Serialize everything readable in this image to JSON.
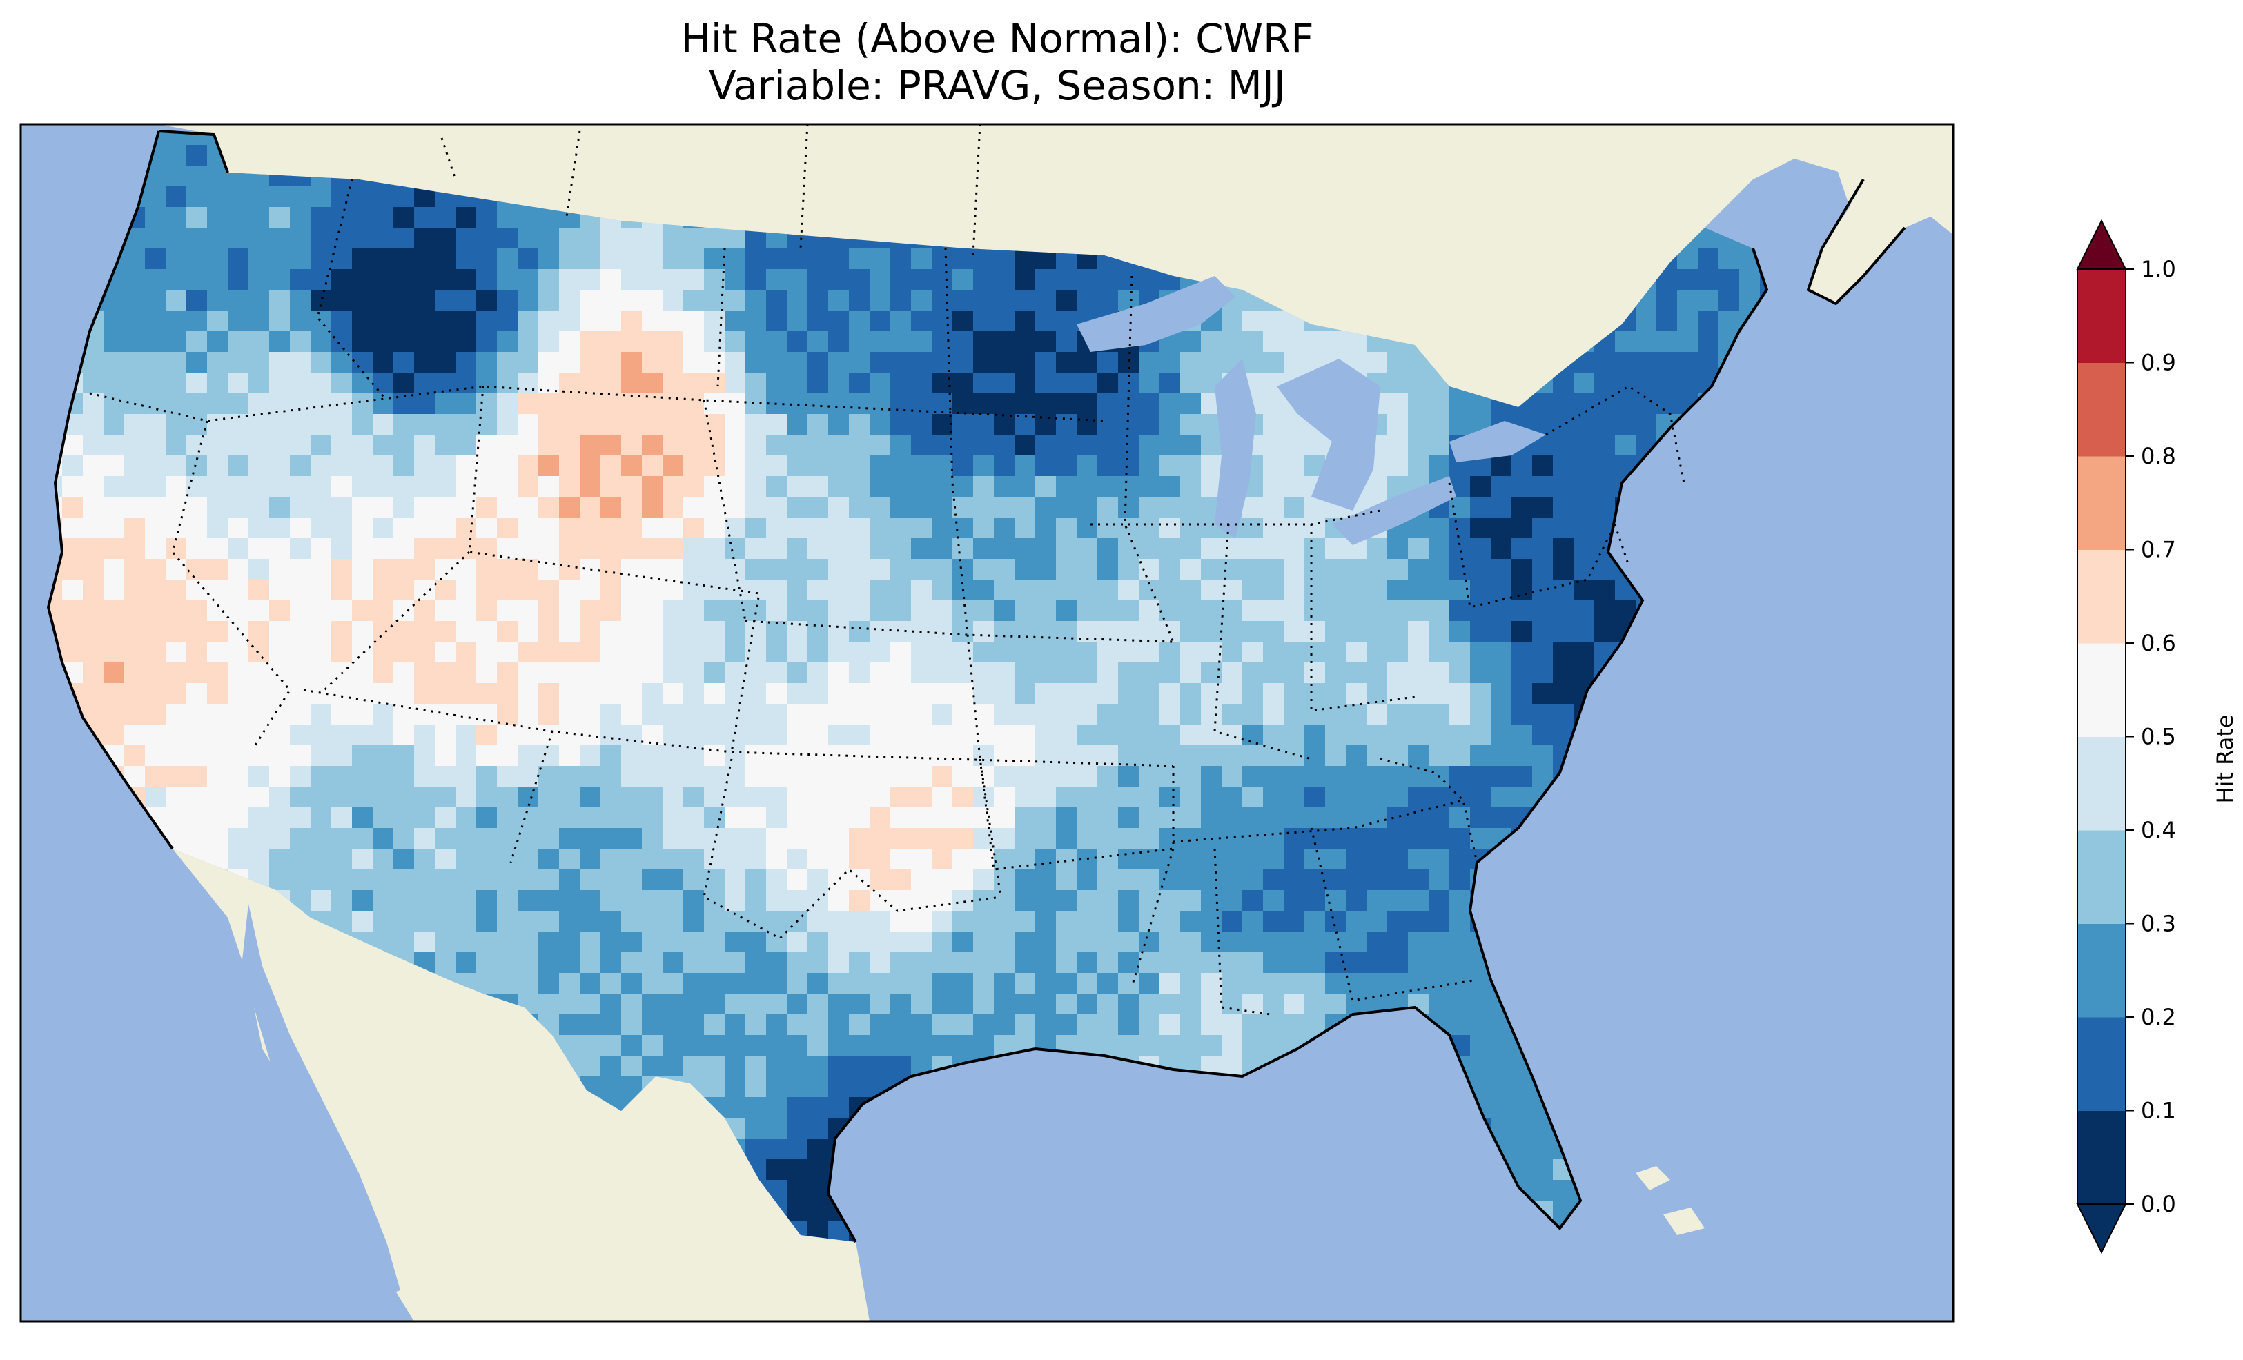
{
  "title": {
    "line1": "Hit Rate (Above Normal): CWRF",
    "line2": "Variable: PRAVG, Season: MJJ"
  },
  "colorbar": {
    "label": "Hit Rate",
    "ticks": [
      "0.0",
      "0.1",
      "0.2",
      "0.3",
      "0.4",
      "0.5",
      "0.6",
      "0.7",
      "0.8",
      "0.9",
      "1.0"
    ],
    "bin_colors": [
      "#053061",
      "#2166ac",
      "#4393c3",
      "#92c5de",
      "#d1e5f0",
      "#f7f7f7",
      "#fddbc7",
      "#f4a582",
      "#d6604d",
      "#b2182b",
      "#67001f"
    ],
    "bin_colors_note_unused": "",
    "under_color": "#053061",
    "over_color": "#67001f"
  },
  "map": {
    "ocean_color": "#97b6e1",
    "land_color": "#efefdb",
    "regions": [
      {
        "name": "northwest",
        "value": 0.25
      },
      {
        "name": "idaho-montana-core",
        "value": 0.08
      },
      {
        "name": "great-basin",
        "value": 0.55
      },
      {
        "name": "california-central",
        "value": 0.65
      },
      {
        "name": "wyoming-red",
        "value": 0.72
      },
      {
        "name": "utah-colorado",
        "value": 0.62
      },
      {
        "name": "southwest",
        "value": 0.3
      },
      {
        "name": "plains",
        "value": 0.42
      },
      {
        "name": "minnesota-core",
        "value": 0.08
      },
      {
        "name": "midwest",
        "value": 0.35
      },
      {
        "name": "northeast",
        "value": 0.15
      },
      {
        "name": "mid-atlantic",
        "value": 0.1
      },
      {
        "name": "southeast",
        "value": 0.25
      },
      {
        "name": "texas-south",
        "value": 0.05
      },
      {
        "name": "florida",
        "value": 0.25
      }
    ]
  }
}
